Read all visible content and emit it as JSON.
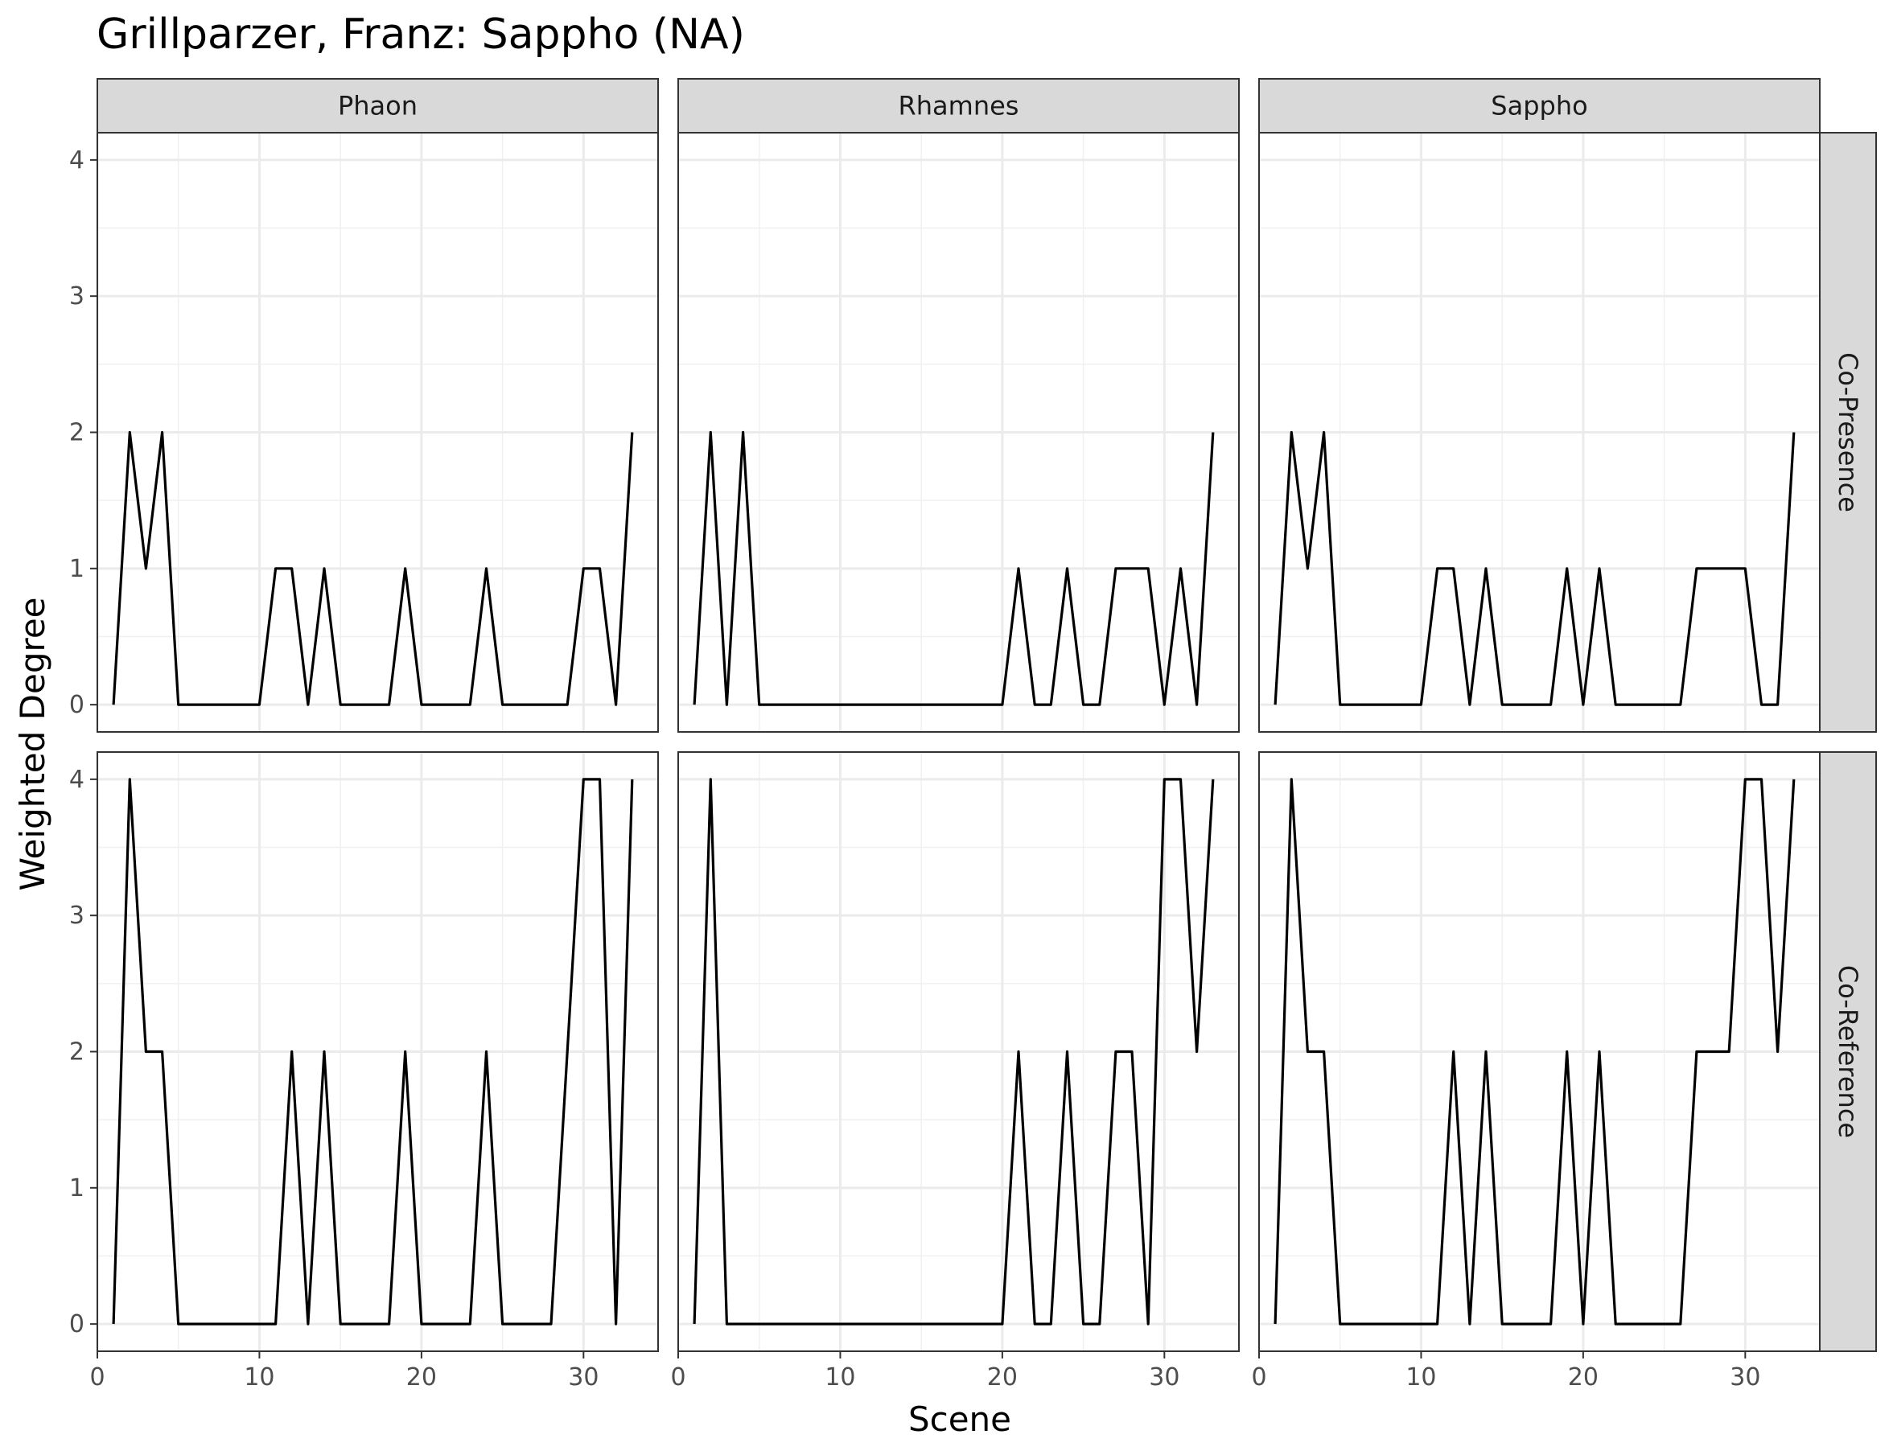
{
  "chart_data": {
    "type": "line",
    "title": "Grillparzer, Franz: Sappho (NA)",
    "xlabel": "Scene",
    "ylabel": "Weighted Degree",
    "xlim": [
      0,
      34.6
    ],
    "ylim": [
      -0.2,
      4.2
    ],
    "x_ticks": [
      0,
      10,
      20,
      30
    ],
    "y_ticks": [
      0,
      1,
      2,
      3,
      4
    ],
    "grid": true,
    "facet_columns": [
      "Phaon",
      "Rhamnes",
      "Sappho"
    ],
    "facet_rows": [
      "Co-Presence",
      "Co-Reference"
    ],
    "x": [
      1,
      2,
      3,
      4,
      5,
      6,
      7,
      8,
      9,
      10,
      11,
      12,
      13,
      14,
      15,
      16,
      17,
      18,
      19,
      20,
      21,
      22,
      23,
      24,
      25,
      26,
      27,
      28,
      29,
      30,
      31,
      32,
      33
    ],
    "panels": [
      {
        "column": "Phaon",
        "row": "Co-Presence",
        "values": [
          0,
          2,
          1,
          2,
          0,
          0,
          0,
          0,
          0,
          0,
          1,
          1,
          0,
          1,
          0,
          0,
          0,
          0,
          1,
          0,
          0,
          0,
          0,
          1,
          0,
          0,
          0,
          0,
          0,
          1,
          1,
          0,
          2
        ]
      },
      {
        "column": "Rhamnes",
        "row": "Co-Presence",
        "values": [
          0,
          2,
          0,
          2,
          0,
          0,
          0,
          0,
          0,
          0,
          0,
          0,
          0,
          0,
          0,
          0,
          0,
          0,
          0,
          0,
          1,
          0,
          0,
          1,
          0,
          0,
          1,
          1,
          1,
          0,
          1,
          0,
          2
        ]
      },
      {
        "column": "Sappho",
        "row": "Co-Presence",
        "values": [
          0,
          2,
          1,
          2,
          0,
          0,
          0,
          0,
          0,
          0,
          1,
          1,
          0,
          1,
          0,
          0,
          0,
          0,
          1,
          0,
          1,
          0,
          0,
          0,
          0,
          0,
          1,
          1,
          1,
          1,
          0,
          0,
          2
        ]
      },
      {
        "column": "Phaon",
        "row": "Co-Reference",
        "values": [
          0,
          4,
          2,
          2,
          0,
          0,
          0,
          0,
          0,
          0,
          0,
          2,
          0,
          2,
          0,
          0,
          0,
          0,
          2,
          0,
          0,
          0,
          0,
          2,
          0,
          0,
          0,
          0,
          2,
          4,
          4,
          0,
          4
        ]
      },
      {
        "column": "Rhamnes",
        "row": "Co-Reference",
        "values": [
          0,
          4,
          0,
          0,
          0,
          0,
          0,
          0,
          0,
          0,
          0,
          0,
          0,
          0,
          0,
          0,
          0,
          0,
          0,
          0,
          2,
          0,
          0,
          2,
          0,
          0,
          2,
          2,
          0,
          4,
          4,
          2,
          4
        ]
      },
      {
        "column": "Sappho",
        "row": "Co-Reference",
        "values": [
          0,
          4,
          2,
          2,
          0,
          0,
          0,
          0,
          0,
          0,
          0,
          2,
          0,
          2,
          0,
          0,
          0,
          0,
          2,
          0,
          2,
          0,
          0,
          0,
          0,
          0,
          2,
          2,
          2,
          4,
          4,
          2,
          4
        ]
      }
    ]
  }
}
